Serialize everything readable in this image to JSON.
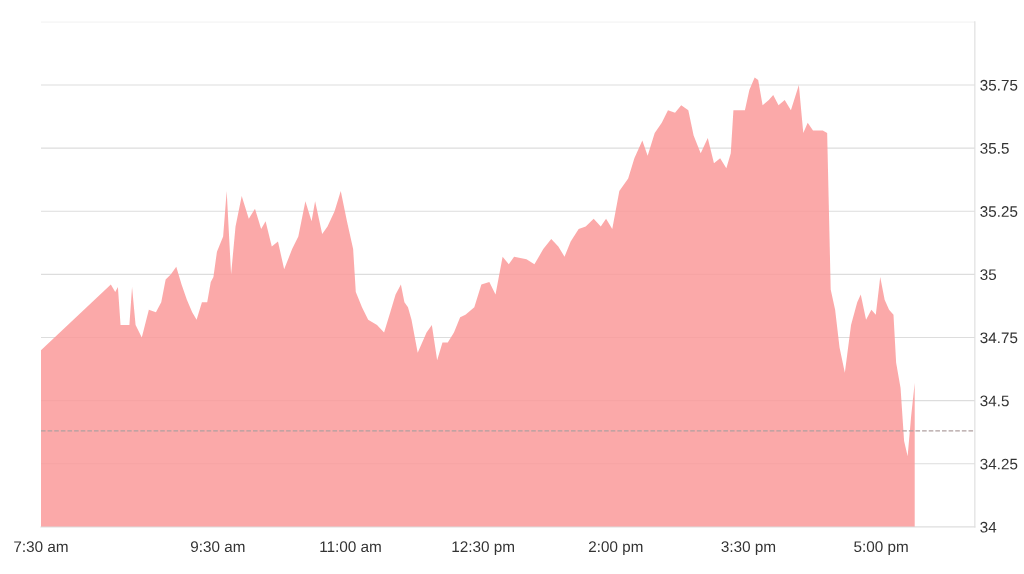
{
  "chart_data": {
    "type": "area",
    "x": [
      7.5,
      8.23,
      8.29,
      8.34,
      8.37,
      8.4,
      8.5,
      8.53,
      8.57,
      8.64,
      8.72,
      8.8,
      8.86,
      8.91,
      8.97,
      9.03,
      9.09,
      9.15,
      9.21,
      9.26,
      9.32,
      9.38,
      9.42,
      9.45,
      9.49,
      9.56,
      9.6,
      9.65,
      9.7,
      9.77,
      9.85,
      9.92,
      9.99,
      10.04,
      10.11,
      10.18,
      10.25,
      10.34,
      10.41,
      10.49,
      10.56,
      10.6,
      10.68,
      10.74,
      10.82,
      10.89,
      10.96,
      11.03,
      11.06,
      11.13,
      11.2,
      11.3,
      11.38,
      11.45,
      11.51,
      11.57,
      11.61,
      11.65,
      11.69,
      11.76,
      11.86,
      11.92,
      11.98,
      12.04,
      12.1,
      12.17,
      12.24,
      12.3,
      12.4,
      12.48,
      12.57,
      12.64,
      12.72,
      12.79,
      12.85,
      12.99,
      13.08,
      13.18,
      13.27,
      13.35,
      13.42,
      13.49,
      13.58,
      13.66,
      13.75,
      13.83,
      13.89,
      13.96,
      14.04,
      14.14,
      14.21,
      14.3,
      14.36,
      14.44,
      14.52,
      14.59,
      14.67,
      14.74,
      14.82,
      14.88,
      14.96,
      15.04,
      15.11,
      15.18,
      15.25,
      15.3,
      15.33,
      15.39,
      15.46,
      15.51,
      15.57,
      15.61,
      15.66,
      15.73,
      15.78,
      15.84,
      15.91,
      15.98,
      16.07,
      16.12,
      16.17,
      16.23,
      16.27,
      16.34,
      16.39,
      16.43,
      16.48,
      16.53,
      16.59,
      16.66,
      16.73,
      16.77,
      16.83,
      16.89,
      16.94,
      16.99,
      17.04,
      17.09,
      17.14,
      17.17,
      17.22,
      17.26,
      17.3,
      17.34,
      17.38
    ],
    "series": [
      {
        "color": "#fa9a9a",
        "values": [
          34.7,
          34.94,
          34.96,
          34.93,
          34.95,
          34.8,
          34.8,
          34.95,
          34.8,
          34.75,
          34.86,
          34.85,
          34.89,
          34.98,
          35.0,
          35.03,
          34.96,
          34.9,
          34.85,
          34.82,
          34.89,
          34.89,
          34.97,
          34.99,
          35.09,
          35.15,
          35.33,
          35.0,
          35.19,
          35.31,
          35.22,
          35.26,
          35.18,
          35.21,
          35.11,
          35.13,
          35.02,
          35.1,
          35.15,
          35.29,
          35.21,
          35.29,
          35.16,
          35.19,
          35.25,
          35.33,
          35.21,
          35.1,
          34.93,
          34.87,
          34.82,
          34.8,
          34.77,
          34.85,
          34.92,
          34.96,
          34.89,
          34.87,
          34.82,
          34.69,
          34.77,
          34.8,
          34.66,
          34.73,
          34.73,
          34.77,
          34.83,
          34.84,
          34.87,
          34.96,
          34.97,
          34.92,
          35.07,
          35.04,
          35.07,
          35.06,
          35.04,
          35.1,
          35.14,
          35.11,
          35.07,
          35.13,
          35.18,
          35.19,
          35.22,
          35.19,
          35.22,
          35.18,
          35.33,
          35.38,
          35.46,
          35.53,
          35.47,
          35.56,
          35.6,
          35.65,
          35.64,
          35.67,
          35.65,
          35.55,
          35.48,
          35.54,
          35.44,
          35.46,
          35.42,
          35.48,
          35.65,
          35.65,
          35.65,
          35.73,
          35.78,
          35.77,
          35.67,
          35.69,
          35.71,
          35.67,
          35.69,
          35.65,
          35.75,
          35.56,
          35.6,
          35.57,
          35.57,
          35.57,
          35.56,
          34.94,
          34.86,
          34.71,
          34.61,
          34.8,
          34.89,
          34.92,
          34.82,
          34.86,
          34.84,
          34.99,
          34.9,
          34.86,
          34.84,
          34.65,
          34.55,
          34.34,
          34.28,
          34.44,
          34.57
        ]
      }
    ],
    "xlim": [
      7.5,
      18.06
    ],
    "xticks": [
      {
        "value": 7.5,
        "label": "7:30 am"
      },
      {
        "value": 9.5,
        "label": "9:30 am"
      },
      {
        "value": 11,
        "label": "11:00 am"
      },
      {
        "value": 12.5,
        "label": "12:30 pm"
      },
      {
        "value": 14,
        "label": "2:00 pm"
      },
      {
        "value": 15.5,
        "label": "3:30 pm"
      },
      {
        "value": 17,
        "label": "5:00 pm"
      }
    ],
    "ylim": [
      34,
      36
    ],
    "yticks": [
      34,
      34.25,
      34.5,
      34.75,
      35,
      35.25,
      35.5,
      35.75,
      {
        "value": 36,
        "label": null
      }
    ],
    "grid": "y",
    "ref_lines": [
      {
        "axis": "y",
        "value": 34.38,
        "color": "#b0a0a0",
        "line_style": "dashed"
      }
    ]
  }
}
